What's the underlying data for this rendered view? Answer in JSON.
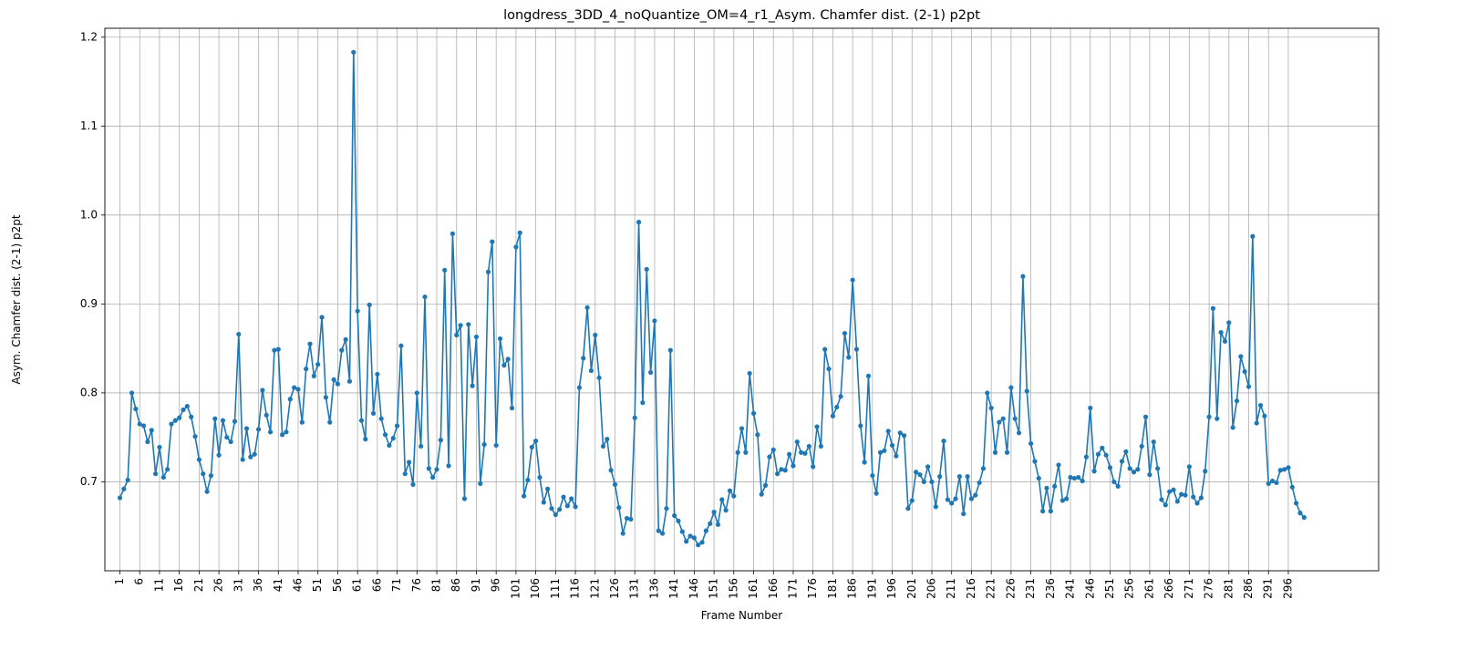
{
  "chart_data": {
    "type": "line",
    "title": "longdress_3DD_4_noQuantize_OM=4_r1_Asym. Chamfer dist. (2-1) p2pt",
    "xlabel": "Frame Number",
    "ylabel": "Asym. Chamfer dist. (2-1) p2pt",
    "xlim": [
      -2.8,
      318.8
    ],
    "ylim": [
      0.6,
      1.21
    ],
    "x_ticks": [
      1,
      6,
      11,
      16,
      21,
      26,
      31,
      36,
      41,
      46,
      51,
      56,
      61,
      66,
      71,
      76,
      81,
      86,
      91,
      96,
      101,
      106,
      111,
      116,
      121,
      126,
      131,
      136,
      141,
      146,
      151,
      156,
      161,
      166,
      171,
      176,
      181,
      186,
      191,
      196,
      201,
      206,
      211,
      216,
      221,
      226,
      231,
      236,
      241,
      246,
      251,
      256,
      261,
      266,
      271,
      276,
      281,
      286,
      291,
      296
    ],
    "y_ticks": [
      0.7,
      0.8,
      0.9,
      1.0,
      1.1,
      1.2
    ],
    "y_tick_labels": [
      "0.7",
      "0.8",
      "0.9",
      "1.0",
      "1.1",
      "1.2"
    ],
    "grid": true,
    "color": "#1f77b4",
    "x_start": 1,
    "values": [
      0.682,
      0.692,
      0.702,
      0.8,
      0.782,
      0.765,
      0.763,
      0.745,
      0.758,
      0.709,
      0.739,
      0.705,
      0.714,
      0.765,
      0.769,
      0.772,
      0.781,
      0.785,
      0.773,
      0.751,
      0.725,
      0.709,
      0.689,
      0.707,
      0.771,
      0.73,
      0.769,
      0.75,
      0.745,
      0.768,
      0.866,
      0.725,
      0.76,
      0.728,
      0.731,
      0.759,
      0.803,
      0.775,
      0.756,
      0.848,
      0.849,
      0.753,
      0.756,
      0.793,
      0.806,
      0.804,
      0.767,
      0.827,
      0.855,
      0.819,
      0.832,
      0.885,
      0.795,
      0.767,
      0.815,
      0.81,
      0.848,
      0.86,
      0.813,
      1.183,
      0.892,
      0.769,
      0.748,
      0.899,
      0.777,
      0.821,
      0.771,
      0.753,
      0.741,
      0.749,
      0.763,
      0.853,
      0.709,
      0.722,
      0.697,
      0.8,
      0.74,
      0.908,
      0.715,
      0.705,
      0.714,
      0.747,
      0.938,
      0.718,
      0.979,
      0.865,
      0.876,
      0.681,
      0.877,
      0.808,
      0.863,
      0.698,
      0.742,
      0.936,
      0.97,
      0.741,
      0.861,
      0.831,
      0.838,
      0.783,
      0.964,
      0.98,
      0.684,
      0.702,
      0.739,
      0.746,
      0.705,
      0.677,
      0.692,
      0.67,
      0.663,
      0.669,
      0.683,
      0.673,
      0.681,
      0.672,
      0.806,
      0.839,
      0.896,
      0.825,
      0.865,
      0.817,
      0.74,
      0.748,
      0.713,
      0.697,
      0.671,
      0.642,
      0.659,
      0.658,
      0.772,
      0.992,
      0.789,
      0.939,
      0.823,
      0.881,
      0.645,
      0.642,
      0.67,
      0.848,
      0.662,
      0.656,
      0.644,
      0.633,
      0.639,
      0.637,
      0.629,
      0.632,
      0.645,
      0.653,
      0.666,
      0.652,
      0.68,
      0.668,
      0.69,
      0.684,
      0.733,
      0.76,
      0.733,
      0.822,
      0.777,
      0.753,
      0.686,
      0.696,
      0.728,
      0.736,
      0.709,
      0.714,
      0.713,
      0.731,
      0.718,
      0.745,
      0.733,
      0.732,
      0.74,
      0.717,
      0.762,
      0.74,
      0.849,
      0.827,
      0.774,
      0.784,
      0.796,
      0.867,
      0.84,
      0.927,
      0.849,
      0.763,
      0.722,
      0.819,
      0.707,
      0.687,
      0.733,
      0.735,
      0.757,
      0.741,
      0.729,
      0.755,
      0.752,
      0.67,
      0.679,
      0.711,
      0.708,
      0.7,
      0.717,
      0.7,
      0.672,
      0.706,
      0.746,
      0.68,
      0.676,
      0.681,
      0.706,
      0.664,
      0.706,
      0.681,
      0.685,
      0.699,
      0.715,
      0.8,
      0.783,
      0.733,
      0.767,
      0.771,
      0.733,
      0.806,
      0.771,
      0.755,
      0.931,
      0.802,
      0.743,
      0.723,
      0.704,
      0.667,
      0.693,
      0.667,
      0.695,
      0.719,
      0.679,
      0.681,
      0.705,
      0.704,
      0.705,
      0.701,
      0.728,
      0.783,
      0.712,
      0.731,
      0.738,
      0.73,
      0.716,
      0.7,
      0.695,
      0.723,
      0.734,
      0.715,
      0.711,
      0.714,
      0.74,
      0.773,
      0.708,
      0.745,
      0.715,
      0.68,
      0.674,
      0.689,
      0.691,
      0.678,
      0.686,
      0.685,
      0.717,
      0.683,
      0.676,
      0.682,
      0.712,
      0.773,
      0.895,
      0.771,
      0.868,
      0.858,
      0.879,
      0.761,
      0.791,
      0.841,
      0.824,
      0.807,
      0.976,
      0.766,
      0.786,
      0.774,
      0.698,
      0.701,
      0.699,
      0.713,
      0.714,
      0.716,
      0.694,
      0.676,
      0.665,
      0.66
    ]
  }
}
